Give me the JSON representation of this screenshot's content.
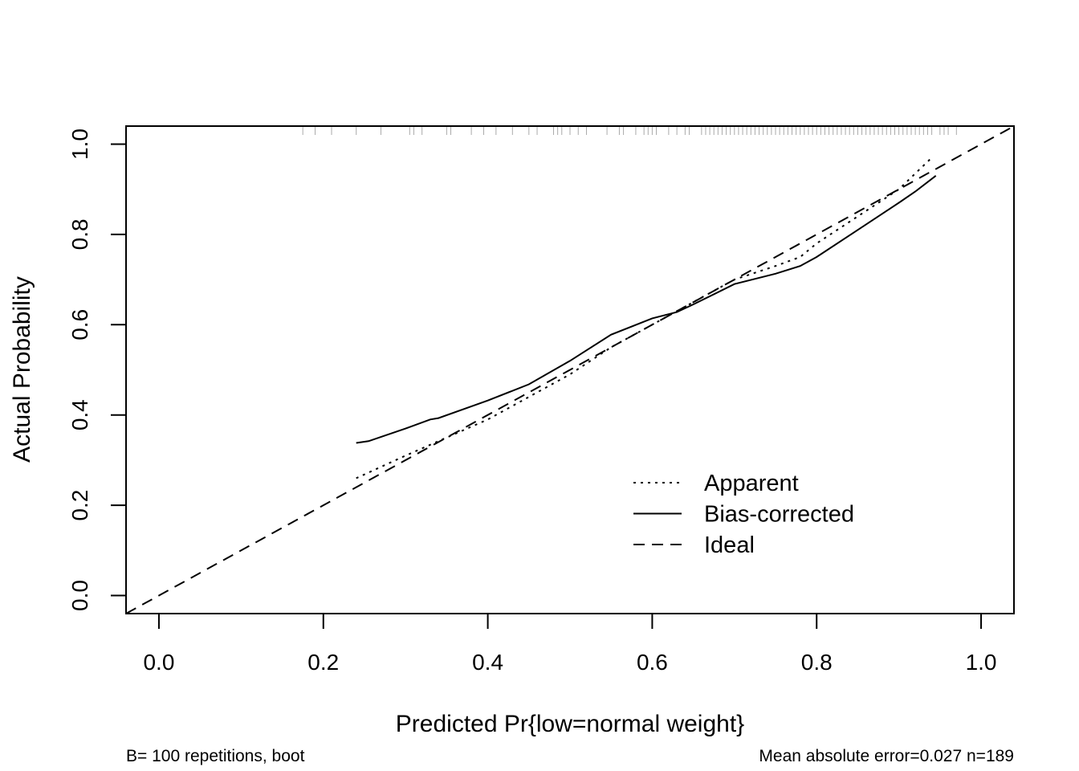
{
  "chart_data": {
    "type": "line",
    "title": "",
    "xlabel": "Predicted Pr{low=normal weight}",
    "ylabel": "Actual Probability",
    "xlim": [
      -0.04,
      1.04
    ],
    "ylim": [
      -0.04,
      1.04
    ],
    "xticks": [
      0.0,
      0.2,
      0.4,
      0.6,
      0.8,
      1.0
    ],
    "yticks": [
      0.0,
      0.2,
      0.4,
      0.6,
      0.8,
      1.0
    ],
    "xtick_labels": [
      "0.0",
      "0.2",
      "0.4",
      "0.6",
      "0.8",
      "1.0"
    ],
    "ytick_labels": [
      "0.0",
      "0.2",
      "0.4",
      "0.6",
      "0.8",
      "1.0"
    ],
    "grid": false,
    "legend_position": "bottom-right",
    "series": [
      {
        "name": "Apparent",
        "line_style": "dotted",
        "x": [
          0.24,
          0.3,
          0.35,
          0.4,
          0.45,
          0.5,
          0.55,
          0.6,
          0.65,
          0.7,
          0.75,
          0.78,
          0.8,
          0.85,
          0.9,
          0.94
        ],
        "y": [
          0.26,
          0.31,
          0.35,
          0.39,
          0.44,
          0.49,
          0.55,
          0.6,
          0.65,
          0.7,
          0.73,
          0.75,
          0.78,
          0.84,
          0.9,
          0.97
        ]
      },
      {
        "name": "Bias-corrected",
        "line_style": "solid",
        "x": [
          0.24,
          0.255,
          0.3,
          0.33,
          0.34,
          0.4,
          0.45,
          0.5,
          0.55,
          0.6,
          0.63,
          0.65,
          0.7,
          0.75,
          0.78,
          0.8,
          0.85,
          0.9,
          0.92,
          0.945
        ],
        "y": [
          0.338,
          0.342,
          0.37,
          0.39,
          0.393,
          0.432,
          0.468,
          0.52,
          0.578,
          0.614,
          0.628,
          0.645,
          0.69,
          0.713,
          0.73,
          0.75,
          0.81,
          0.87,
          0.895,
          0.93
        ]
      },
      {
        "name": "Ideal",
        "line_style": "dashed",
        "x": [
          -0.04,
          1.04
        ],
        "y": [
          -0.04,
          1.04
        ]
      }
    ],
    "rug_x": [
      0.175,
      0.19,
      0.21,
      0.24,
      0.27,
      0.305,
      0.31,
      0.32,
      0.35,
      0.355,
      0.38,
      0.395,
      0.41,
      0.43,
      0.45,
      0.46,
      0.48,
      0.485,
      0.49,
      0.5,
      0.51,
      0.52,
      0.545,
      0.56,
      0.565,
      0.58,
      0.59,
      0.595,
      0.6,
      0.605,
      0.62,
      0.63,
      0.64,
      0.645,
      0.66,
      0.665,
      0.67,
      0.675,
      0.68,
      0.685,
      0.69,
      0.695,
      0.7,
      0.705,
      0.71,
      0.715,
      0.72,
      0.725,
      0.73,
      0.735,
      0.74,
      0.745,
      0.75,
      0.755,
      0.76,
      0.765,
      0.77,
      0.775,
      0.78,
      0.785,
      0.79,
      0.795,
      0.8,
      0.805,
      0.81,
      0.815,
      0.82,
      0.825,
      0.83,
      0.835,
      0.84,
      0.845,
      0.85,
      0.855,
      0.86,
      0.865,
      0.87,
      0.875,
      0.88,
      0.885,
      0.89,
      0.895,
      0.9,
      0.905,
      0.91,
      0.915,
      0.92,
      0.925,
      0.93,
      0.935,
      0.94,
      0.95,
      0.955,
      0.96,
      0.97
    ],
    "footnote_left": "B= 100 repetitions, boot",
    "footnote_right": "Mean absolute error=0.027 n=189"
  }
}
